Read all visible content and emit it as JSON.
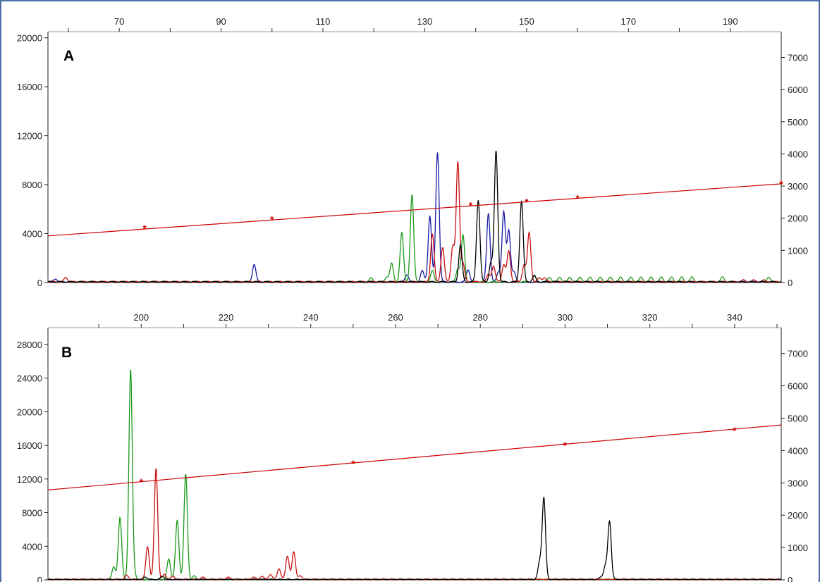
{
  "colors": {
    "frame": "#4a6fa5",
    "axis": "#222222",
    "size_standard": "#cc0000",
    "blue_dye": "#1a1aa8",
    "green_dye": "#1a9a1a",
    "red_dye": "#cc1111",
    "black_dye": "#000000"
  },
  "chart_data": [
    {
      "type": "line",
      "panel_label": "A",
      "x_ticks": [
        70,
        90,
        110,
        130,
        150,
        170,
        190
      ],
      "xlim": [
        56,
        200
      ],
      "y_left_ticks": [
        0,
        4000,
        8000,
        12000,
        16000,
        20000
      ],
      "y_left_lim": [
        0,
        20500
      ],
      "y_right_ticks": [
        0,
        1000,
        2000,
        3000,
        4000,
        5000,
        6000,
        7000
      ],
      "y_right_lim": [
        0,
        7800
      ],
      "size_standard": {
        "axis": "right",
        "line": [
          [
            56,
            1450
          ],
          [
            200,
            3070
          ]
        ],
        "markers": [
          [
            75,
            1690
          ],
          [
            100,
            1960
          ],
          [
            139,
            2400
          ],
          [
            150,
            2510
          ],
          [
            160,
            2620
          ],
          [
            200,
            3070
          ]
        ]
      },
      "series": [
        {
          "color": "blue_dye",
          "peaks": [
            [
              57.5,
              250
            ],
            [
              96.5,
              1450
            ],
            [
              126.5,
              600
            ],
            [
              129.5,
              900
            ],
            [
              131.0,
              5400
            ],
            [
              132.5,
              10600
            ],
            [
              138.5,
              1000
            ],
            [
              142.5,
              5600
            ],
            [
              144.5,
              800
            ],
            [
              145.5,
              5700
            ],
            [
              146.5,
              4200
            ],
            [
              147.5,
              800
            ]
          ]
        },
        {
          "color": "green_dye",
          "peaks": [
            [
              119.5,
              300
            ],
            [
              122.5,
              400
            ],
            [
              123.5,
              1500
            ],
            [
              125.5,
              4000
            ],
            [
              127.5,
              7100
            ],
            [
              131.5,
              900
            ],
            [
              136.5,
              1100
            ],
            [
              137.5,
              3800
            ],
            [
              151.5,
              450
            ],
            [
              154.5,
              400
            ],
            [
              156.5,
              400
            ],
            [
              158.5,
              400
            ],
            [
              160.5,
              400
            ],
            [
              162.5,
              400
            ],
            [
              164.5,
              400
            ],
            [
              166.5,
              400
            ],
            [
              168.5,
              400
            ],
            [
              170.5,
              400
            ],
            [
              172.5,
              400
            ],
            [
              174.5,
              400
            ],
            [
              176.5,
              400
            ],
            [
              178.5,
              400
            ],
            [
              180.5,
              400
            ],
            [
              182.5,
              400
            ],
            [
              188.5,
              400
            ],
            [
              197.5,
              400
            ]
          ]
        },
        {
          "color": "red_dye",
          "peaks": [
            [
              59.5,
              350
            ],
            [
              131.5,
              3900
            ],
            [
              133.5,
              2800
            ],
            [
              135.5,
              2900
            ],
            [
              136.5,
              9800
            ],
            [
              137.5,
              1500
            ],
            [
              142.5,
              600
            ],
            [
              143.5,
              1300
            ],
            [
              145.5,
              1400
            ],
            [
              146.5,
              2500
            ],
            [
              149.5,
              1400
            ],
            [
              150.5,
              4000
            ],
            [
              152.5,
              300
            ],
            [
              153.5,
              350
            ],
            [
              192.5,
              150
            ],
            [
              194.5,
              150
            ],
            [
              196.5,
              150
            ]
          ]
        },
        {
          "color": "black_dye",
          "peaks": [
            [
              137.0,
              3000
            ],
            [
              140.5,
              6700
            ],
            [
              143.0,
              1600
            ],
            [
              144.0,
              10700
            ],
            [
              149.0,
              6600
            ],
            [
              151.5,
              500
            ]
          ]
        }
      ]
    },
    {
      "type": "line",
      "panel_label": "B",
      "x_ticks": [
        200,
        220,
        240,
        260,
        280,
        300,
        320,
        340
      ],
      "xlim": [
        178,
        351
      ],
      "y_left_ticks": [
        0,
        4000,
        8000,
        12000,
        16000,
        20000,
        24000,
        28000
      ],
      "y_left_lim": [
        0,
        30000
      ],
      "y_right_ticks": [
        0,
        1000,
        2000,
        3000,
        4000,
        5000,
        6000,
        7000
      ],
      "y_right_lim": [
        0,
        7800
      ],
      "size_standard": {
        "axis": "right",
        "line": [
          [
            178,
            2780
          ],
          [
            351,
            4790
          ]
        ],
        "markers": [
          [
            200,
            3030
          ],
          [
            250,
            3590
          ],
          [
            300,
            4160
          ],
          [
            340,
            4620
          ]
        ]
      },
      "series": [
        {
          "color": "green_dye",
          "peaks": [
            [
              193.5,
              1500
            ],
            [
              195.0,
              7400
            ],
            [
              197.5,
              25000
            ],
            [
              206.5,
              2400
            ],
            [
              208.5,
              7000
            ],
            [
              210.5,
              12500
            ],
            [
              198.5,
              400
            ],
            [
              212.5,
              400
            ]
          ]
        },
        {
          "color": "red_dye",
          "peaks": [
            [
              196.5,
              500
            ],
            [
              201.5,
              3900
            ],
            [
              203.5,
              13200
            ],
            [
              205.5,
              600
            ],
            [
              207.5,
              400
            ],
            [
              214.5,
              300
            ],
            [
              220.5,
              300
            ],
            [
              226.5,
              300
            ],
            [
              228.5,
              400
            ],
            [
              230.5,
              600
            ],
            [
              232.5,
              1300
            ],
            [
              234.5,
              2800
            ],
            [
              236.0,
              3300
            ],
            [
              237.5,
              400
            ]
          ]
        },
        {
          "color": "black_dye",
          "peaks": [
            [
              201.0,
              300
            ],
            [
              205.0,
              400
            ],
            [
              294.0,
              2000
            ],
            [
              295.0,
              9700
            ],
            [
              308.5,
              300
            ],
            [
              309.5,
              1500
            ],
            [
              310.5,
              6900
            ]
          ]
        }
      ]
    }
  ]
}
